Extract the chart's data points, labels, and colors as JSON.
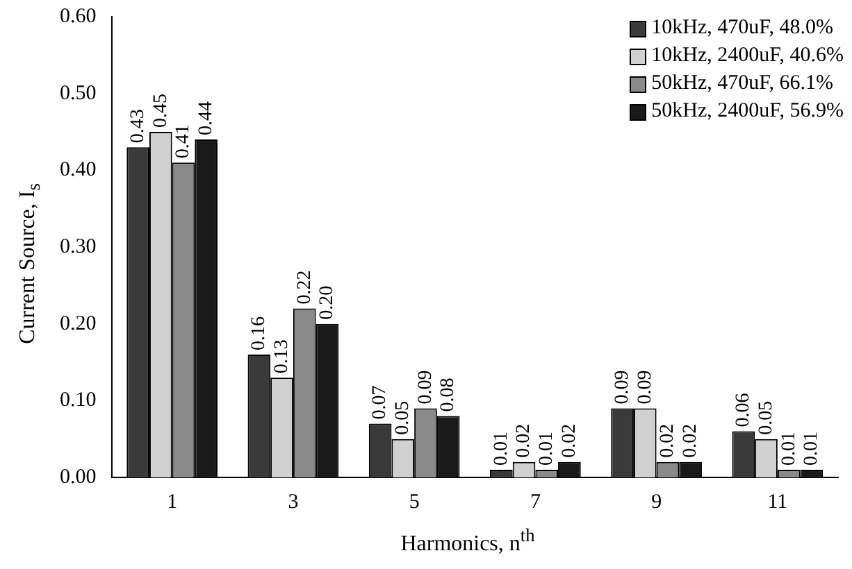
{
  "chart_data": {
    "type": "bar",
    "xlabel": "Harmonics, n$^{th}$",
    "ylabel": "Current Source, I$_{s}$",
    "categories": [
      "1",
      "3",
      "5",
      "7",
      "9",
      "11"
    ],
    "series": [
      {
        "name": "10kHz, 470uF, 48.0%",
        "color": "#3a3a3a",
        "values": [
          0.43,
          0.16,
          0.07,
          0.01,
          0.09,
          0.06
        ],
        "value_labels": [
          "0.43",
          "0.16",
          "0.07",
          "0.01",
          "0.09",
          "0.06"
        ]
      },
      {
        "name": "10kHz, 2400uF, 40.6%",
        "color": "#d0d0d0",
        "values": [
          0.45,
          0.13,
          0.05,
          0.02,
          0.09,
          0.05
        ],
        "value_labels": [
          "0.45",
          "0.13",
          "0.05",
          "0.02",
          "0.09",
          "0.05"
        ]
      },
      {
        "name": "50kHz, 470uF, 66.1%",
        "color": "#8a8a8a",
        "values": [
          0.41,
          0.22,
          0.09,
          0.01,
          0.02,
          0.01
        ],
        "value_labels": [
          "0.41",
          "0.22",
          "0.09",
          "0.01",
          "0.02",
          "0.01"
        ]
      },
      {
        "name": "50kHz, 2400uF, 56.9%",
        "color": "#1a1a1a",
        "values": [
          0.44,
          0.2,
          0.08,
          0.02,
          0.02,
          0.01
        ],
        "value_labels": [
          "0.44",
          "0.20",
          "0.08",
          "0.02",
          "0.02",
          "0.01"
        ]
      }
    ],
    "ylim": [
      0,
      0.6
    ],
    "yticks": [
      {
        "value": 0,
        "label": "0.00"
      },
      {
        "value": 0.1,
        "label": "0.10"
      },
      {
        "value": 0.2,
        "label": "0.20"
      },
      {
        "value": 0.3,
        "label": "0.30"
      },
      {
        "value": 0.4,
        "label": "0.40"
      },
      {
        "value": 0.5,
        "label": "0.50"
      },
      {
        "value": 0.6,
        "label": "0.60"
      }
    ],
    "grid": false,
    "legend": "top right"
  }
}
